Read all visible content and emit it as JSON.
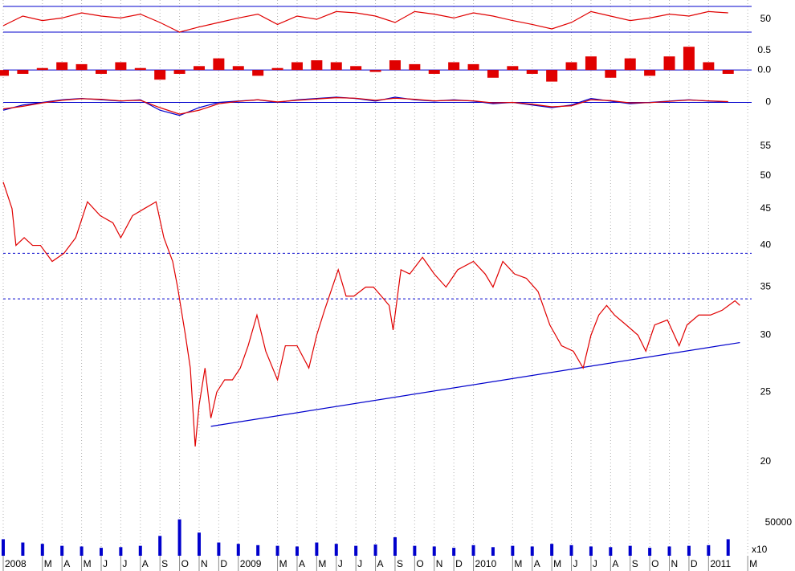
{
  "chart_data": [
    {
      "type": "line",
      "ylim": [
        25,
        75
      ],
      "yticks": [
        50
      ],
      "reference_lines": [
        30,
        70
      ],
      "reference_color": "#0000cc",
      "x": [
        0,
        1,
        2,
        3,
        4,
        5,
        6,
        7,
        8,
        9,
        10,
        11,
        12,
        13,
        14,
        15,
        16,
        17,
        18,
        19,
        20,
        21,
        22,
        23,
        24,
        25,
        26,
        27,
        28,
        29,
        30,
        31,
        32,
        33,
        34,
        35,
        36,
        37
      ],
      "series": [
        {
          "color": "#e00000",
          "values": [
            40,
            55,
            48,
            52,
            60,
            55,
            52,
            58,
            45,
            30,
            38,
            45,
            52,
            58,
            42,
            55,
            50,
            62,
            60,
            55,
            45,
            62,
            58,
            52,
            60,
            55,
            48,
            42,
            35,
            45,
            62,
            55,
            48,
            52,
            58,
            55,
            62,
            60
          ]
        }
      ]
    },
    {
      "type": "bar",
      "ylim": [
        -0.35,
        0.77
      ],
      "yticks": [
        0.5,
        {
          "value": 0,
          "label": "0.0"
        }
      ],
      "reference_lines": [
        0
      ],
      "reference_color": "#0000cc",
      "x": [
        0,
        1,
        2,
        3,
        4,
        5,
        6,
        7,
        8,
        9,
        10,
        11,
        12,
        13,
        14,
        15,
        16,
        17,
        18,
        19,
        20,
        21,
        22,
        23,
        24,
        25,
        26,
        27,
        28,
        29,
        30,
        31,
        32,
        33,
        34,
        35,
        36,
        37
      ],
      "series": [
        {
          "color": "#e00000",
          "values": [
            -0.15,
            -0.1,
            0.05,
            0.2,
            0.15,
            -0.1,
            0.2,
            0.05,
            -0.25,
            -0.1,
            0.1,
            0.3,
            0.1,
            -0.15,
            0.05,
            0.2,
            0.25,
            0.2,
            0.1,
            -0.05,
            0.25,
            0.15,
            -0.1,
            0.2,
            0.15,
            -0.2,
            0.1,
            -0.1,
            -0.3,
            0.2,
            0.35,
            -0.2,
            0.3,
            -0.15,
            0.35,
            0.6,
            0.2,
            -0.1
          ]
        }
      ]
    },
    {
      "type": "line",
      "ylim": [
        -1,
        0.6
      ],
      "yticks": [
        0
      ],
      "reference_lines": [
        0
      ],
      "reference_color": "#0000cc",
      "x": [
        0,
        1,
        2,
        3,
        4,
        5,
        6,
        7,
        8,
        9,
        10,
        11,
        12,
        13,
        14,
        15,
        16,
        17,
        18,
        19,
        20,
        21,
        22,
        23,
        24,
        25,
        26,
        27,
        28,
        29,
        30,
        31,
        32,
        33,
        34,
        35,
        36,
        37
      ],
      "series": [
        {
          "color": "#0000cc",
          "values": [
            -0.3,
            -0.1,
            0,
            0.1,
            0.15,
            0.1,
            0.05,
            0.1,
            -0.3,
            -0.5,
            -0.2,
            0,
            0.05,
            0.1,
            0,
            0.1,
            0.15,
            0.2,
            0.15,
            0.05,
            0.2,
            0.1,
            0.05,
            0.1,
            0.05,
            -0.05,
            0,
            -0.1,
            -0.2,
            -0.1,
            0.15,
            0.05,
            -0.05,
            0,
            0.05,
            0.1,
            0.05,
            0.02
          ]
        },
        {
          "color": "#e00000",
          "values": [
            -0.25,
            -0.15,
            -0.02,
            0.08,
            0.14,
            0.12,
            0.06,
            0.08,
            -0.2,
            -0.45,
            -0.3,
            -0.05,
            0.04,
            0.1,
            0.02,
            0.08,
            0.13,
            0.18,
            0.16,
            0.08,
            0.16,
            0.12,
            0.06,
            0.08,
            0.06,
            -0.02,
            0,
            -0.07,
            -0.17,
            -0.13,
            0.1,
            0.07,
            -0.02,
            -0.01,
            0.04,
            0.09,
            0.06,
            0.03
          ]
        }
      ]
    },
    {
      "type": "line",
      "log_scale": true,
      "ylim": [
        18.75,
        56.7
      ],
      "yticks": [
        20,
        25,
        30,
        35,
        40,
        45,
        50,
        55
      ],
      "reference_lines": [
        39,
        33.7
      ],
      "reference_color": "#0000cc",
      "reference_style": "dashed",
      "trendline": {
        "x": [
          10.6,
          37.6
        ],
        "y": [
          22.4,
          29.3
        ],
        "color": "#0000cc"
      },
      "xlim": [
        0,
        38.2
      ],
      "xticks": [
        {
          "value": 0,
          "label": "2008"
        },
        {
          "value": 2,
          "label": "M"
        },
        {
          "value": 3,
          "label": "A"
        },
        {
          "value": 4,
          "label": "M"
        },
        {
          "value": 5,
          "label": "J"
        },
        {
          "value": 6,
          "label": "J"
        },
        {
          "value": 7,
          "label": "A"
        },
        {
          "value": 8,
          "label": "S"
        },
        {
          "value": 9,
          "label": "O"
        },
        {
          "value": 10,
          "label": "N"
        },
        {
          "value": 11,
          "label": "D"
        },
        {
          "value": 12,
          "label": "2009"
        },
        {
          "value": 14,
          "label": "M"
        },
        {
          "value": 15,
          "label": "A"
        },
        {
          "value": 16,
          "label": "M"
        },
        {
          "value": 17,
          "label": "J"
        },
        {
          "value": 18,
          "label": "J"
        },
        {
          "value": 19,
          "label": "A"
        },
        {
          "value": 20,
          "label": "S"
        },
        {
          "value": 21,
          "label": "O"
        },
        {
          "value": 22,
          "label": "N"
        },
        {
          "value": 23,
          "label": "D"
        },
        {
          "value": 24,
          "label": "2010"
        },
        {
          "value": 26,
          "label": "M"
        },
        {
          "value": 27,
          "label": "A"
        },
        {
          "value": 28,
          "label": "M"
        },
        {
          "value": 29,
          "label": "J"
        },
        {
          "value": 30,
          "label": "J"
        },
        {
          "value": 31,
          "label": "A"
        },
        {
          "value": 32,
          "label": "S"
        },
        {
          "value": 33,
          "label": "O"
        },
        {
          "value": 34,
          "label": "N"
        },
        {
          "value": 35,
          "label": "D"
        },
        {
          "value": 36,
          "label": "2011"
        },
        {
          "value": 38,
          "label": "M"
        }
      ],
      "x": [
        0,
        0.45,
        0.65,
        1.07,
        1.5,
        1.9,
        2.5,
        3.1,
        3.7,
        4.3,
        4.95,
        5.6,
        6,
        6.6,
        7.2,
        7.8,
        8.2,
        8.65,
        8.9,
        9.3,
        9.55,
        9.8,
        10,
        10.3,
        10.6,
        10.9,
        11.3,
        11.7,
        12.1,
        12.5,
        12.95,
        13.4,
        14,
        14.4,
        15,
        15.6,
        16,
        16.4,
        17.1,
        17.5,
        17.9,
        18.5,
        18.9,
        19.3,
        19.7,
        19.9,
        20.3,
        20.75,
        21.4,
        22,
        22.6,
        23.2,
        24,
        24.6,
        25,
        25.5,
        26.1,
        26.7,
        27.3,
        27.9,
        28.5,
        29.1,
        29.6,
        30,
        30.4,
        30.8,
        31.2,
        31.8,
        32.4,
        32.8,
        33.25,
        33.9,
        34.5,
        34.9,
        35.5,
        36.1,
        36.7,
        37.35,
        37.6
      ],
      "series": [
        {
          "color": "#e00000",
          "values": [
            49,
            45,
            40,
            41,
            40,
            40,
            38,
            39,
            41,
            46,
            44,
            43,
            41,
            44,
            45,
            46,
            41,
            38,
            35,
            30,
            27,
            21,
            24,
            27,
            23,
            25,
            26,
            26,
            27,
            29,
            32,
            28.5,
            26,
            29,
            29,
            27,
            30,
            32.5,
            37,
            34,
            34,
            35,
            35,
            34,
            33,
            30.5,
            37,
            36.5,
            38.5,
            36.5,
            35,
            37,
            38,
            36.5,
            35,
            38,
            36.5,
            36,
            34.5,
            31,
            29,
            28.5,
            27,
            30,
            32,
            33,
            32,
            31,
            30,
            28.5,
            31,
            31.5,
            29,
            31,
            32,
            32,
            32.5,
            33.5,
            33
          ]
        }
      ]
    },
    {
      "type": "bar",
      "ylim": [
        0,
        68000
      ],
      "yticks": [
        50000
      ],
      "unit_label": "x10",
      "x": [
        0,
        1,
        2,
        3,
        4,
        5,
        6,
        7,
        8,
        9,
        10,
        11,
        12,
        13,
        14,
        15,
        16,
        17,
        18,
        19,
        20,
        21,
        22,
        23,
        24,
        25,
        26,
        27,
        28,
        29,
        30,
        31,
        32,
        33,
        34,
        35,
        36,
        37
      ],
      "series": [
        {
          "color": "#0000cc",
          "values": [
            25000,
            20000,
            18000,
            15000,
            14000,
            12000,
            13000,
            15000,
            30000,
            55000,
            35000,
            20000,
            18000,
            16000,
            15000,
            14000,
            20000,
            18000,
            15000,
            17000,
            28000,
            15000,
            14000,
            12000,
            16000,
            13000,
            15000,
            14000,
            18000,
            16000,
            14000,
            13000,
            15000,
            12000,
            14000,
            15000,
            16000,
            25000
          ]
        }
      ]
    }
  ]
}
